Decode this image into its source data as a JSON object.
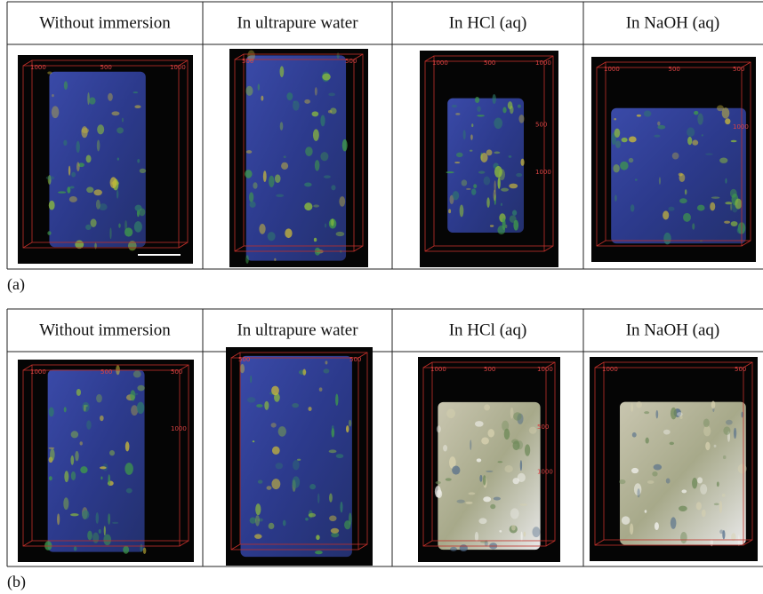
{
  "figure": {
    "panels": [
      {
        "label": "(a)",
        "columns": [
          {
            "header": "Without immersion",
            "image_labels": [
              "1000",
              "500",
              "1000"
            ]
          },
          {
            "header": "In ultrapure water",
            "image_labels": [
              "500",
              "500"
            ]
          },
          {
            "header": "In HCl (aq)",
            "image_labels": [
              "1000",
              "500",
              "1000",
              "500",
              "1000"
            ]
          },
          {
            "header": "In NaOH (aq)",
            "image_labels": [
              "1000",
              "500",
              "500",
              "1000"
            ]
          }
        ]
      },
      {
        "label": "(b)",
        "columns": [
          {
            "header": "Without immersion",
            "image_labels": [
              "1000",
              "500",
              "500",
              "1000"
            ]
          },
          {
            "header": "In ultrapure water",
            "image_labels": [
              "500",
              "500"
            ]
          },
          {
            "header": "In HCl (aq)",
            "image_labels": [
              "1000",
              "500",
              "1000",
              "500",
              "1000"
            ]
          },
          {
            "header": "In NaOH (aq)",
            "image_labels": [
              "1000",
              "500"
            ]
          }
        ]
      }
    ]
  }
}
